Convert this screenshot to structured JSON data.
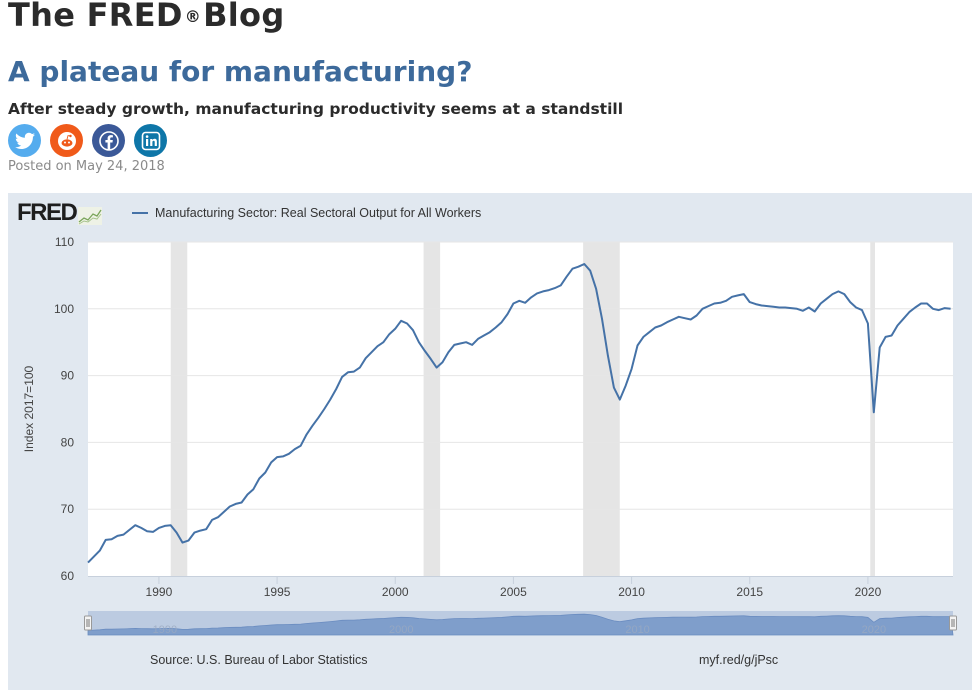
{
  "blog": {
    "title_part1": "The FRED",
    "registered_mark": "®",
    "title_part2": "Blog"
  },
  "post": {
    "title": "A plateau for manufacturing?",
    "subtitle": "After steady growth, manufacturing productivity seems at a standstill",
    "posted": "Posted on May 24, 2018"
  },
  "social": [
    {
      "name": "twitter",
      "icon": "twitter-icon",
      "color": "#55acee"
    },
    {
      "name": "reddit",
      "icon": "reddit-icon",
      "color": "#f05a1a"
    },
    {
      "name": "facebook",
      "icon": "facebook-icon",
      "color": "#3b5998"
    },
    {
      "name": "linkedin",
      "icon": "linkedin-icon",
      "color": "#0e76a8"
    }
  ],
  "chart_header": {
    "logo_text": "FRED",
    "logo_icon": "chart-trend-icon"
  },
  "footer": {
    "source": "Source: U.S. Bureau of Labor Statistics",
    "shortlink": "myf.red/g/jPsc"
  },
  "colors": {
    "series": "#4572a7",
    "recession": "#e5e5e5",
    "panel_bg": "#e1e8f0",
    "title_blue": "#3d6a9b"
  },
  "chart_data": {
    "type": "line",
    "title": "",
    "legend": [
      {
        "name": "Manufacturing Sector: Real Sectoral Output for All Workers",
        "color": "#4572a7"
      }
    ],
    "legend_placement": "top-left",
    "xlabel": "",
    "ylabel": "Index 2017=100",
    "xlim": [
      1987.0,
      2023.6
    ],
    "ylim": [
      60,
      110
    ],
    "yticks": [
      60,
      70,
      80,
      90,
      100,
      110
    ],
    "xticks": [
      1990,
      1995,
      2000,
      2005,
      2010,
      2015,
      2020
    ],
    "navigator_labels": [
      1990,
      2000,
      2010,
      2020
    ],
    "grid": "horizontal",
    "recessions": [
      [
        1990.5,
        1991.2
      ],
      [
        2001.2,
        2001.9
      ],
      [
        2007.95,
        2009.5
      ],
      [
        2020.1,
        2020.3
      ]
    ],
    "series": [
      {
        "name": "Manufacturing Sector: Real Sectoral Output for All Workers",
        "x": [
          1987.0,
          1987.25,
          1987.5,
          1987.75,
          1988.0,
          1988.25,
          1988.5,
          1988.75,
          1989.0,
          1989.25,
          1989.5,
          1989.75,
          1990.0,
          1990.25,
          1990.5,
          1990.75,
          1991.0,
          1991.25,
          1991.5,
          1991.75,
          1992.0,
          1992.25,
          1992.5,
          1992.75,
          1993.0,
          1993.25,
          1993.5,
          1993.75,
          1994.0,
          1994.25,
          1994.5,
          1994.75,
          1995.0,
          1995.25,
          1995.5,
          1995.75,
          1996.0,
          1996.25,
          1996.5,
          1996.75,
          1997.0,
          1997.25,
          1997.5,
          1997.75,
          1998.0,
          1998.25,
          1998.5,
          1998.75,
          1999.0,
          1999.25,
          1999.5,
          1999.75,
          2000.0,
          2000.25,
          2000.5,
          2000.75,
          2001.0,
          2001.25,
          2001.5,
          2001.75,
          2002.0,
          2002.25,
          2002.5,
          2002.75,
          2003.0,
          2003.25,
          2003.5,
          2003.75,
          2004.0,
          2004.25,
          2004.5,
          2004.75,
          2005.0,
          2005.25,
          2005.5,
          2005.75,
          2006.0,
          2006.25,
          2006.5,
          2006.75,
          2007.0,
          2007.25,
          2007.5,
          2007.75,
          2008.0,
          2008.25,
          2008.5,
          2008.75,
          2009.0,
          2009.25,
          2009.5,
          2009.75,
          2010.0,
          2010.25,
          2010.5,
          2010.75,
          2011.0,
          2011.25,
          2011.5,
          2011.75,
          2012.0,
          2012.25,
          2012.5,
          2012.75,
          2013.0,
          2013.25,
          2013.5,
          2013.75,
          2014.0,
          2014.25,
          2014.5,
          2014.75,
          2015.0,
          2015.25,
          2015.5,
          2015.75,
          2016.0,
          2016.25,
          2016.5,
          2016.75,
          2017.0,
          2017.25,
          2017.5,
          2017.75,
          2018.0,
          2018.25,
          2018.5,
          2018.75,
          2019.0,
          2019.25,
          2019.5,
          2019.75,
          2020.0,
          2020.25,
          2020.5,
          2020.75,
          2021.0,
          2021.25,
          2021.5,
          2021.75,
          2022.0,
          2022.25,
          2022.5,
          2022.75,
          2023.0,
          2023.25,
          2023.5
        ],
        "values": [
          62.0,
          62.9,
          63.8,
          65.4,
          65.5,
          66.0,
          66.2,
          66.9,
          67.6,
          67.2,
          66.7,
          66.6,
          67.2,
          67.5,
          67.6,
          66.5,
          65.0,
          65.3,
          66.5,
          66.8,
          67.0,
          68.4,
          68.8,
          69.6,
          70.4,
          70.8,
          71.0,
          72.2,
          73.0,
          74.6,
          75.5,
          77.0,
          77.8,
          77.9,
          78.3,
          79.0,
          79.5,
          81.2,
          82.5,
          83.7,
          85.0,
          86.4,
          88.0,
          89.8,
          90.5,
          90.6,
          91.2,
          92.6,
          93.5,
          94.4,
          95.0,
          96.2,
          97.0,
          98.2,
          97.8,
          96.8,
          95.0,
          93.7,
          92.5,
          91.2,
          92.0,
          93.5,
          94.6,
          94.8,
          95.0,
          94.6,
          95.5,
          96.0,
          96.5,
          97.2,
          98.0,
          99.2,
          100.8,
          101.2,
          100.9,
          101.7,
          102.3,
          102.6,
          102.8,
          103.1,
          103.5,
          104.8,
          106.0,
          106.3,
          106.7,
          105.7,
          103.0,
          98.5,
          93.0,
          88.2,
          86.4,
          88.5,
          91.0,
          94.5,
          95.8,
          96.5,
          97.2,
          97.5,
          98.0,
          98.4,
          98.8,
          98.6,
          98.4,
          99.0,
          100.0,
          100.4,
          100.8,
          100.9,
          101.2,
          101.8,
          102.0,
          102.2,
          101.0,
          100.7,
          100.5,
          100.4,
          100.3,
          100.2,
          100.2,
          100.1,
          100.0,
          99.7,
          100.2,
          99.6,
          100.8,
          101.5,
          102.2,
          102.6,
          102.2,
          101.0,
          100.2,
          99.8,
          97.8,
          84.5,
          94.2,
          95.8,
          96.0,
          97.5,
          98.5,
          99.5,
          100.2,
          100.8,
          100.8,
          100.0,
          99.8,
          100.1,
          100.0
        ]
      }
    ]
  }
}
